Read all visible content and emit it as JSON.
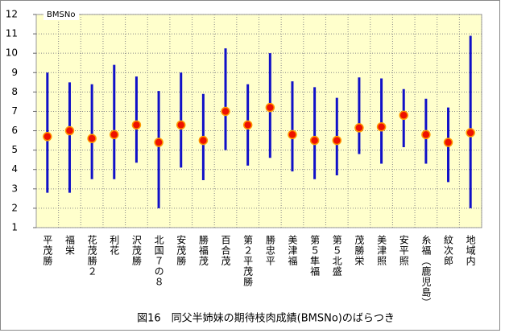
{
  "chart_data": {
    "type": "range",
    "caption": "図16　同父半姉妹の期待枝肉成績(BMSNo)のばらつき",
    "ylabel": "BMSNo",
    "categories": [
      "平茂勝",
      "福栄",
      "花茂勝２",
      "利花",
      "沢茂勝",
      "北国７の８",
      "安茂勝",
      "勝福茂",
      "百合茂",
      "第２平茂勝",
      "勝忠平",
      "美津福",
      "第５隼福",
      "第５北盛",
      "茂勝栄",
      "美津照",
      "安平照",
      "糸福（鹿児島）",
      "紋次郎",
      "地域内"
    ],
    "high": [
      9.0,
      8.5,
      8.4,
      9.4,
      8.8,
      8.05,
      9.0,
      7.9,
      10.25,
      8.4,
      10.0,
      8.55,
      8.25,
      7.7,
      8.75,
      8.7,
      8.15,
      7.65,
      7.2,
      10.9
    ],
    "low": [
      2.8,
      2.8,
      3.5,
      3.5,
      4.35,
      2.0,
      4.1,
      3.45,
      5.0,
      4.2,
      4.6,
      3.9,
      3.5,
      3.7,
      4.8,
      4.3,
      5.15,
      4.3,
      3.35,
      2.0
    ],
    "values": [
      5.7,
      6.0,
      5.6,
      5.8,
      6.3,
      5.4,
      6.3,
      5.5,
      7.0,
      6.3,
      7.2,
      5.8,
      5.5,
      5.5,
      6.15,
      6.2,
      6.8,
      5.8,
      5.4,
      5.9
    ],
    "bar_color": "#1010c8",
    "dot_color": "#ee1100",
    "ylim": [
      1,
      12
    ],
    "yticks": [
      1,
      2,
      3,
      4,
      5,
      6,
      7,
      8,
      9,
      10,
      11,
      12
    ],
    "grid": true
  }
}
